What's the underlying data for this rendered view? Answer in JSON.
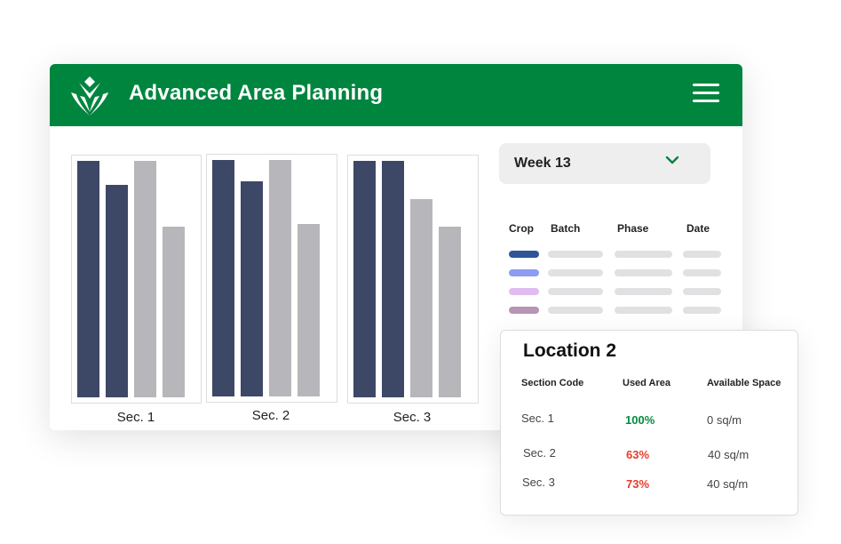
{
  "app": {
    "title": "Advanced Area Planning"
  },
  "colors": {
    "brand": "#00853f",
    "bar_dark": "#3d4766",
    "bar_grey": "#b7b6ba",
    "green": "#008c3f",
    "red": "#e83b2b"
  },
  "icons": {
    "logo": "leaf-logo-icon",
    "menu": "hamburger-menu-icon",
    "dropdown": "chevron-down-icon"
  },
  "chart_data": {
    "type": "bar",
    "categories": [
      "Sec. 1",
      "Sec. 2",
      "Sec. 3"
    ],
    "bars_per_category": [
      {
        "values": [
          100,
          90,
          100,
          72
        ],
        "colors": [
          "dark",
          "dark",
          "grey",
          "grey"
        ]
      },
      {
        "values": [
          100,
          91,
          100,
          73
        ],
        "colors": [
          "dark",
          "dark",
          "grey",
          "grey"
        ]
      },
      {
        "values": [
          100,
          100,
          84,
          72
        ],
        "colors": [
          "dark",
          "dark",
          "grey",
          "grey"
        ]
      }
    ],
    "ylim": [
      0,
      100
    ],
    "grid": false,
    "legend": "none"
  },
  "week_select": {
    "value": "Week 13"
  },
  "crop_table": {
    "headers": [
      "Crop",
      "Batch",
      "Phase",
      "Date"
    ],
    "swatches": [
      "#2f5596",
      "#8d9cf0",
      "#e0bdf0",
      "#b894b5"
    ]
  },
  "location": {
    "title": "Location 2",
    "headers": [
      "Section Code",
      "Used Area",
      "Available Space"
    ],
    "rows": [
      {
        "section": "Sec. 1",
        "used": "100%",
        "available": "0 sq/m"
      },
      {
        "section": "Sec. 2",
        "used": "63%",
        "available": "40 sq/m"
      },
      {
        "section": "Sec. 3",
        "used": "73%",
        "available": "40 sq/m"
      }
    ]
  }
}
